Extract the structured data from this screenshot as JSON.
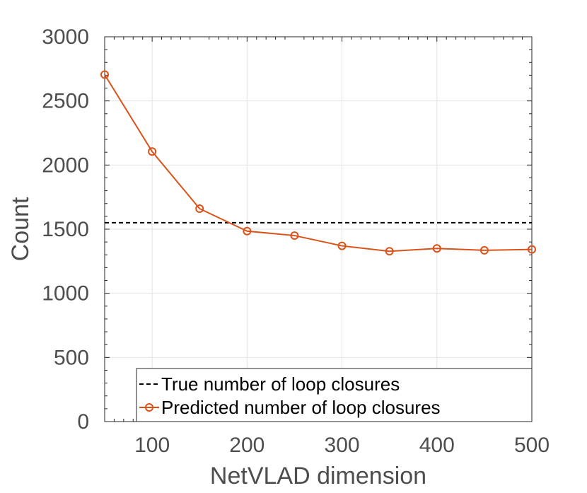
{
  "chart_data": {
    "type": "line",
    "xlabel": "NetVLAD dimension",
    "ylabel": "Count",
    "xlim": [
      50,
      500
    ],
    "ylim": [
      0,
      3000
    ],
    "x_ticks": [
      100,
      200,
      300,
      400,
      500
    ],
    "y_ticks": [
      0,
      500,
      1000,
      1500,
      2000,
      2500,
      3000
    ],
    "x_tick_labels": [
      "100",
      "200",
      "300",
      "400",
      "500"
    ],
    "y_tick_labels": [
      "0",
      "500",
      "1000",
      "1500",
      "2000",
      "2500",
      "3000"
    ],
    "grid": true,
    "legend_position": "bottom-right",
    "x": [
      50,
      100,
      150,
      200,
      250,
      300,
      350,
      400,
      450,
      500
    ],
    "series": [
      {
        "name": "True number of loop closures",
        "style": "dashed",
        "color": "#000000",
        "x": [
          50,
          500
        ],
        "values": [
          1550,
          1550
        ]
      },
      {
        "name": "Predicted number of loop closures",
        "style": "line-circle",
        "color": "#d95319",
        "x": [
          50,
          100,
          150,
          200,
          250,
          300,
          350,
          400,
          450,
          500
        ],
        "values": [
          2705,
          2105,
          1660,
          1485,
          1450,
          1370,
          1328,
          1350,
          1335,
          1342
        ]
      }
    ]
  }
}
